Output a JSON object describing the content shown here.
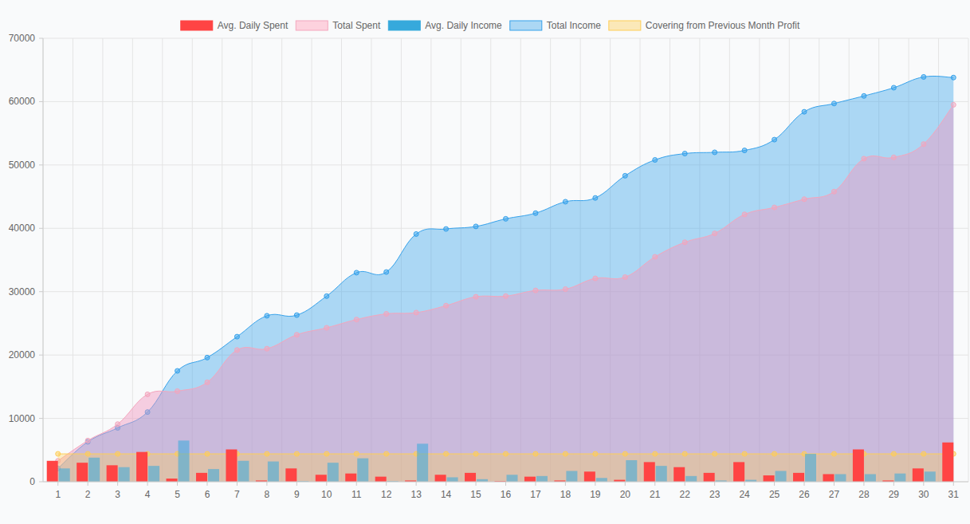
{
  "chart_data": {
    "type": "combo",
    "categories": [
      "1",
      "2",
      "3",
      "4",
      "5",
      "6",
      "7",
      "8",
      "9",
      "10",
      "11",
      "12",
      "13",
      "14",
      "15",
      "16",
      "17",
      "18",
      "19",
      "20",
      "21",
      "22",
      "23",
      "24",
      "25",
      "26",
      "27",
      "28",
      "29",
      "30",
      "31"
    ],
    "ylim": [
      0,
      70000
    ],
    "yticks": [
      0,
      10000,
      20000,
      30000,
      40000,
      50000,
      60000,
      70000
    ],
    "grid": true,
    "legend": "top",
    "series": [
      {
        "name": "Avg. Daily Spent",
        "type": "bar",
        "color": "#ff4444",
        "values": [
          3300,
          3000,
          2600,
          4700,
          500,
          1400,
          5100,
          200,
          2100,
          1100,
          1300,
          800,
          200,
          1100,
          1400,
          100,
          800,
          200,
          1600,
          300,
          3100,
          2300,
          1400,
          3100,
          1000,
          1400,
          1200,
          5100,
          200,
          2100,
          6200
        ]
      },
      {
        "name": "Total Spent",
        "type": "area",
        "color": "#f4a6bd",
        "values": [
          3300,
          6500,
          9100,
          13800,
          14300,
          15700,
          20800,
          21000,
          23200,
          24300,
          25600,
          26500,
          26700,
          27800,
          29200,
          29300,
          30200,
          30400,
          32100,
          32300,
          35500,
          37800,
          39200,
          42200,
          43300,
          44600,
          45800,
          51000,
          51200,
          53300,
          59500
        ]
      },
      {
        "name": "Avg. Daily Income",
        "type": "bar",
        "color": "#36a9dc",
        "values": [
          2100,
          3800,
          2300,
          2500,
          6500,
          2000,
          3300,
          3200,
          100,
          3000,
          3700,
          100,
          6000,
          700,
          400,
          1100,
          900,
          1700,
          600,
          3400,
          2500,
          900,
          200,
          300,
          1700,
          4400,
          1200,
          1200,
          1300,
          1600,
          0
        ]
      },
      {
        "name": "Total Income",
        "type": "area",
        "color": "#36a2eb",
        "values": [
          2100,
          6300,
          8500,
          11000,
          17500,
          19600,
          22900,
          26200,
          26300,
          29300,
          33000,
          33100,
          39100,
          39900,
          40300,
          41500,
          42400,
          44200,
          44800,
          48300,
          50800,
          51800,
          52000,
          52300,
          54000,
          58400,
          59700,
          60900,
          62200,
          63900,
          63800
        ]
      },
      {
        "name": "Covering from Previous Month Profit",
        "type": "area",
        "color": "#ffce56",
        "values": [
          4400,
          4400,
          4400,
          4400,
          4400,
          4400,
          4400,
          4400,
          4400,
          4400,
          4400,
          4400,
          4400,
          4400,
          4400,
          4400,
          4400,
          4400,
          4400,
          4400,
          4400,
          4400,
          4400,
          4400,
          4400,
          4400,
          4400,
          4400,
          4400,
          4400,
          4400
        ]
      }
    ]
  }
}
